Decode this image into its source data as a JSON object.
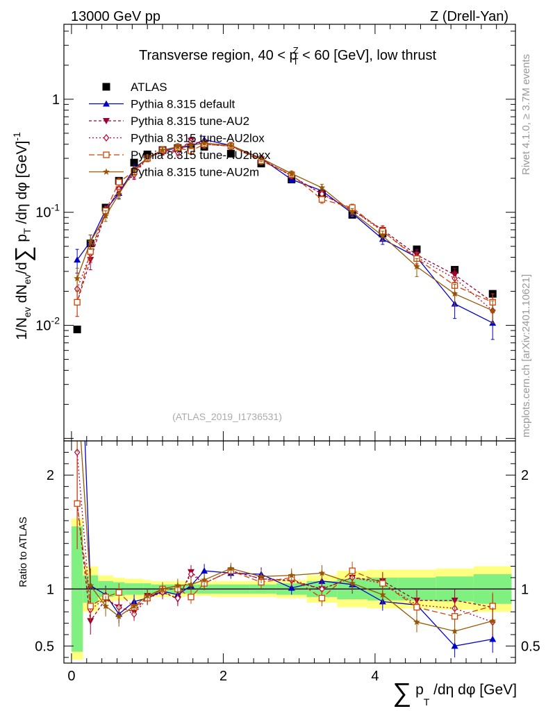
{
  "header": {
    "left": "13000 GeV pp",
    "right": "Z (Drell-Yan)"
  },
  "side_labels": {
    "rivet": "Rivet 4.1.0, ≥ 3.7M events",
    "mcplots": "mcplots.cern.ch [arXiv:2401.10621]"
  },
  "watermark": "(ATLAS_2019_I1736531)",
  "colors": {
    "atlas": "#000000",
    "default": "#0000cc",
    "au2": "#990033",
    "au2lox": "#bb0033",
    "au2loxx": "#cc4400",
    "au2m": "#995500",
    "band_inner": "#80f080",
    "band_outer": "#ffff80"
  },
  "chart_data": [
    {
      "type": "line",
      "panel": "main",
      "title": "Transverse region, 40 < p_T^Z < 60 [GeV], low thrust",
      "title_parts": {
        "pre": "Transverse region, 40 < p",
        "sup": "Z",
        "sub": "T",
        "post": " < 60 [GeV], low thrust"
      },
      "ylabel": "1/N_ev dN_ev/d∑ p_T /dη dφ [GeV]^-1",
      "ylabel_parts": {
        "a": "1/N",
        "a_sub": "ev",
        "b": " dN",
        "b_sub": "ev",
        "c": "/d",
        "sum": "∑",
        "d": " p",
        "d_sub": "T",
        "e": " /dη dφ  [GeV]",
        "e_sup": "-1"
      },
      "yscale": "log",
      "xlim": [
        -0.1,
        5.85
      ],
      "ylim": [
        0.00095,
        4.6
      ],
      "yticks": [
        {
          "value": 0.01,
          "base": "10",
          "exp": "-2"
        },
        {
          "value": 0.1,
          "label": "10",
          "exp": "-1"
        },
        {
          "value": 1,
          "label": "1"
        }
      ],
      "legend_position": "top-left",
      "x": [
        0.075,
        0.25,
        0.45,
        0.625,
        0.825,
        1.0,
        1.2,
        1.4,
        1.575,
        1.75,
        2.1,
        2.5,
        2.9,
        3.3,
        3.7,
        4.1,
        4.55,
        5.05,
        5.55
      ],
      "series": [
        {
          "name": "ATLAS",
          "key": "atlas",
          "marker": "square",
          "values": [
            0.0092,
            0.053,
            0.11,
            0.19,
            0.275,
            0.325,
            0.355,
            0.37,
            0.375,
            0.38,
            0.33,
            0.27,
            0.195,
            0.145,
            0.095,
            0.065,
            0.047,
            0.031,
            0.019
          ]
        },
        {
          "name": "Pythia 8.315 default",
          "key": "default",
          "marker": "triangle-up",
          "dash": "",
          "values": [
            0.038,
            0.055,
            0.105,
            0.148,
            0.245,
            0.3,
            0.35,
            0.37,
            0.385,
            0.44,
            0.39,
            0.3,
            0.195,
            0.155,
            0.098,
            0.058,
            0.04,
            0.0155,
            0.0105
          ],
          "err": [
            0.009,
            0.008,
            0.01,
            0.015,
            0.02,
            0.02,
            0.025,
            0.025,
            0.025,
            0.03,
            0.025,
            0.02,
            0.012,
            0.01,
            0.008,
            0.006,
            0.006,
            0.004,
            0.003
          ]
        },
        {
          "name": "Pythia 8.315 tune-AU2",
          "key": "au2",
          "marker": "triangle-down",
          "dash": "4,3",
          "values": [
            0.016,
            0.038,
            0.1,
            0.16,
            0.22,
            0.305,
            0.35,
            0.35,
            0.43,
            0.4,
            0.385,
            0.295,
            0.21,
            0.145,
            0.105,
            0.07,
            0.042,
            0.028,
            0.016
          ],
          "err": [
            0.004,
            0.007,
            0.01,
            0.015,
            0.02,
            0.02,
            0.025,
            0.025,
            0.03,
            0.03,
            0.025,
            0.02,
            0.012,
            0.01,
            0.008,
            0.006,
            0.005,
            0.004,
            0.003
          ]
        },
        {
          "name": "Pythia 8.315 tune-AU2lox",
          "key": "au2lox",
          "marker": "diamond",
          "dash": "2,3",
          "values": [
            0.021,
            0.043,
            0.1,
            0.16,
            0.215,
            0.3,
            0.345,
            0.34,
            0.425,
            0.4,
            0.385,
            0.295,
            0.21,
            0.145,
            0.105,
            0.068,
            0.04,
            0.026,
            0.0135
          ],
          "err": [
            0.005,
            0.007,
            0.01,
            0.015,
            0.02,
            0.02,
            0.025,
            0.025,
            0.03,
            0.03,
            0.025,
            0.02,
            0.012,
            0.01,
            0.008,
            0.006,
            0.005,
            0.004,
            0.003
          ]
        },
        {
          "name": "Pythia 8.315 tune-AU2loxx",
          "key": "au2loxx",
          "marker": "open-square",
          "dash": "8,4",
          "values": [
            0.016,
            0.045,
            0.103,
            0.185,
            0.23,
            0.3,
            0.355,
            0.37,
            0.35,
            0.4,
            0.385,
            0.285,
            0.215,
            0.13,
            0.11,
            0.068,
            0.039,
            0.0225,
            0.016
          ],
          "err": [
            0.004,
            0.007,
            0.01,
            0.015,
            0.02,
            0.02,
            0.025,
            0.025,
            0.025,
            0.03,
            0.025,
            0.02,
            0.012,
            0.01,
            0.008,
            0.006,
            0.005,
            0.004,
            0.003
          ]
        },
        {
          "name": "Pythia 8.315 tune-AU2m",
          "key": "au2m",
          "marker": "star",
          "dash": "",
          "values": [
            0.026,
            0.055,
            0.093,
            0.145,
            0.235,
            0.305,
            0.355,
            0.38,
            0.39,
            0.41,
            0.39,
            0.3,
            0.22,
            0.165,
            0.1,
            0.062,
            0.033,
            0.019,
            0.0135
          ],
          "err": [
            0.006,
            0.008,
            0.01,
            0.015,
            0.02,
            0.02,
            0.025,
            0.025,
            0.025,
            0.03,
            0.025,
            0.02,
            0.012,
            0.012,
            0.008,
            0.006,
            0.006,
            0.004,
            0.003
          ]
        }
      ]
    },
    {
      "type": "line",
      "panel": "ratio",
      "ylabel": "Ratio to ATLAS",
      "xlabel": "∑ p_T /dη dφ [GeV]",
      "xlabel_parts": {
        "sum": "∑",
        "a": " p",
        "a_sub": "T",
        "b": " /dη dφ [GeV]"
      },
      "xlim": [
        -0.1,
        5.85
      ],
      "ylim": [
        0.35,
        2.3
      ],
      "xticks": [
        0,
        2,
        4
      ],
      "yticks": [
        0.5,
        1,
        2
      ],
      "x": [
        0.075,
        0.25,
        0.45,
        0.625,
        0.825,
        1.0,
        1.2,
        1.4,
        1.575,
        1.75,
        2.1,
        2.5,
        2.9,
        3.3,
        3.7,
        4.1,
        4.55,
        5.05,
        5.55
      ],
      "bin_edges": [
        0.0,
        0.15,
        0.35,
        0.55,
        0.7,
        0.95,
        1.05,
        1.3,
        1.5,
        1.65,
        1.85,
        2.35,
        2.7,
        3.1,
        3.5,
        3.9,
        4.3,
        4.8,
        5.3,
        5.8
      ],
      "band_inner": [
        0.55,
        0.12,
        0.07,
        0.06,
        0.05,
        0.05,
        0.04,
        0.04,
        0.04,
        0.04,
        0.04,
        0.04,
        0.05,
        0.07,
        0.09,
        0.1,
        0.1,
        0.11,
        0.13
      ],
      "band_outer": [
        0.62,
        0.2,
        0.12,
        0.1,
        0.09,
        0.08,
        0.07,
        0.07,
        0.06,
        0.06,
        0.07,
        0.07,
        0.08,
        0.12,
        0.16,
        0.17,
        0.17,
        0.18,
        0.2
      ],
      "series": [
        {
          "key": "default",
          "values": [
            4.1,
            1.03,
            0.95,
            0.78,
            0.89,
            0.92,
            0.98,
            0.95,
            1.03,
            1.16,
            1.14,
            1.13,
            1.01,
            1.07,
            1.04,
            0.89,
            0.86,
            0.5,
            0.56
          ],
          "err": [
            0.9,
            0.15,
            0.08,
            0.08,
            0.06,
            0.06,
            0.06,
            0.06,
            0.06,
            0.06,
            0.05,
            0.06,
            0.06,
            0.07,
            0.08,
            0.08,
            0.09,
            0.1,
            0.12
          ]
        },
        {
          "key": "au2",
          "values": [
            1.75,
            0.72,
            0.91,
            0.84,
            0.8,
            0.94,
            0.98,
            0.91,
            1.15,
            1.05,
            1.16,
            1.09,
            1.07,
            1.0,
            1.1,
            1.07,
            0.9,
            0.9,
            0.84
          ],
          "err": [
            0.4,
            0.12,
            0.08,
            0.08,
            0.06,
            0.06,
            0.06,
            0.06,
            0.06,
            0.06,
            0.05,
            0.06,
            0.06,
            0.07,
            0.08,
            0.08,
            0.09,
            0.1,
            0.12
          ]
        },
        {
          "key": "au2lox",
          "values": [
            2.2,
            0.82,
            0.92,
            0.84,
            0.78,
            0.92,
            0.97,
            0.92,
            1.13,
            1.05,
            1.16,
            1.09,
            1.08,
            1.0,
            1.1,
            1.05,
            0.86,
            0.83,
            0.71
          ],
          "err": [
            0.45,
            0.13,
            0.08,
            0.08,
            0.06,
            0.06,
            0.06,
            0.06,
            0.06,
            0.06,
            0.05,
            0.06,
            0.06,
            0.07,
            0.08,
            0.08,
            0.09,
            0.1,
            0.12
          ]
        },
        {
          "key": "au2loxx",
          "values": [
            1.75,
            0.85,
            0.93,
            0.97,
            0.84,
            0.92,
            1.0,
            1.0,
            0.93,
            1.05,
            1.16,
            1.06,
            1.1,
            0.92,
            1.16,
            1.05,
            0.84,
            0.76,
            0.85
          ],
          "err": [
            0.4,
            0.13,
            0.08,
            0.08,
            0.06,
            0.06,
            0.06,
            0.06,
            0.06,
            0.06,
            0.05,
            0.06,
            0.06,
            0.07,
            0.08,
            0.08,
            0.09,
            0.1,
            0.12
          ]
        },
        {
          "key": "au2m",
          "values": [
            2.8,
            1.03,
            0.85,
            0.76,
            0.85,
            0.94,
            1.0,
            1.03,
            1.04,
            1.08,
            1.18,
            1.11,
            1.12,
            1.14,
            1.05,
            0.95,
            0.71,
            0.63,
            0.72
          ],
          "err": [
            0.6,
            0.15,
            0.09,
            0.09,
            0.06,
            0.06,
            0.06,
            0.06,
            0.06,
            0.06,
            0.05,
            0.06,
            0.06,
            0.07,
            0.08,
            0.08,
            0.09,
            0.1,
            0.12
          ]
        }
      ]
    }
  ]
}
